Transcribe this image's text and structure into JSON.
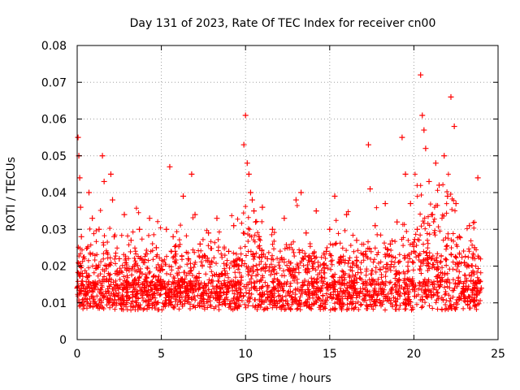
{
  "chart_data": {
    "type": "scatter",
    "title": "Day 131 of 2023, Rate Of TEC Index for receiver cn00",
    "xlabel": "GPS time / hours",
    "ylabel": "ROTI / TECUs",
    "xlim": [
      0,
      25
    ],
    "ylim": [
      0,
      0.08
    ],
    "xticks": [
      0,
      5,
      10,
      15,
      20,
      25
    ],
    "xtick_labels": [
      "0",
      "5",
      "10",
      "15",
      "20",
      "25"
    ],
    "yticks": [
      0,
      0.01,
      0.02,
      0.03,
      0.04,
      0.05,
      0.06,
      0.07,
      0.08
    ],
    "ytick_labels": [
      "0",
      "0.01",
      "0.02",
      "0.03",
      "0.04",
      "0.05",
      "0.06",
      "0.07",
      "0.08"
    ],
    "grid": true,
    "marker": "plus",
    "color": "#ff0000",
    "series": [
      {
        "name": "ROTI",
        "x": [
          0.0,
          0.05,
          0.1,
          0.15,
          0.2,
          0.25,
          0.3,
          0.4,
          0.5,
          0.7,
          0.9,
          1.1,
          1.3,
          1.5,
          1.6,
          1.75,
          2.0,
          2.1,
          2.2,
          2.3,
          2.5,
          2.8,
          3.0,
          3.2,
          3.4,
          3.7,
          4.0,
          4.3,
          4.5,
          4.7,
          5.0,
          5.3,
          5.5,
          5.7,
          6.0,
          6.3,
          6.6,
          6.8,
          7.0,
          7.3,
          7.5,
          7.8,
          8.0,
          8.3,
          8.6,
          9.0,
          9.3,
          9.6,
          9.9,
          10.0,
          10.1,
          10.2,
          10.3,
          10.4,
          10.5,
          10.6,
          10.8,
          11.0,
          11.3,
          11.6,
          12.0,
          12.3,
          12.6,
          13.0,
          13.3,
          13.6,
          13.9,
          14.2,
          14.5,
          14.8,
          15.0,
          15.3,
          15.6,
          16.0,
          16.3,
          16.6,
          17.0,
          17.3,
          17.4,
          17.7,
          18.0,
          18.3,
          18.6,
          19.0,
          19.3,
          19.5,
          19.8,
          20.0,
          20.2,
          20.4,
          20.5,
          20.6,
          20.7,
          20.9,
          21.1,
          21.3,
          21.5,
          21.8,
          22.0,
          22.2,
          22.4,
          22.5,
          22.7,
          23.0,
          23.3,
          23.6,
          23.8,
          24.0
        ],
        "y": [
          0.014,
          0.055,
          0.05,
          0.044,
          0.036,
          0.028,
          0.018,
          0.011,
          0.012,
          0.04,
          0.033,
          0.015,
          0.03,
          0.05,
          0.043,
          0.02,
          0.045,
          0.038,
          0.028,
          0.015,
          0.022,
          0.034,
          0.013,
          0.027,
          0.016,
          0.03,
          0.021,
          0.033,
          0.012,
          0.025,
          0.02,
          0.03,
          0.047,
          0.028,
          0.016,
          0.039,
          0.022,
          0.045,
          0.034,
          0.026,
          0.014,
          0.029,
          0.021,
          0.033,
          0.018,
          0.024,
          0.031,
          0.02,
          0.053,
          0.061,
          0.048,
          0.045,
          0.04,
          0.038,
          0.035,
          0.032,
          0.028,
          0.036,
          0.022,
          0.03,
          0.015,
          0.033,
          0.025,
          0.038,
          0.04,
          0.029,
          0.022,
          0.035,
          0.017,
          0.024,
          0.03,
          0.039,
          0.021,
          0.034,
          0.016,
          0.027,
          0.023,
          0.053,
          0.041,
          0.031,
          0.019,
          0.037,
          0.026,
          0.032,
          0.055,
          0.045,
          0.037,
          0.024,
          0.03,
          0.072,
          0.061,
          0.057,
          0.052,
          0.043,
          0.034,
          0.048,
          0.042,
          0.05,
          0.039,
          0.066,
          0.058,
          0.037,
          0.028,
          0.021,
          0.031,
          0.025,
          0.044,
          0.014
        ]
      }
    ]
  }
}
